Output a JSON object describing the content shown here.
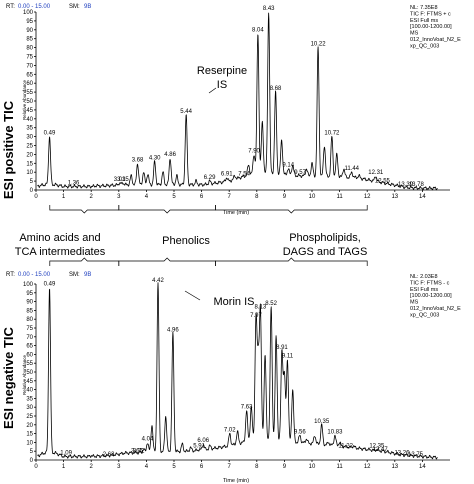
{
  "chart_data": [
    {
      "type": "line",
      "side_label": "ESI positive TIC",
      "header": {
        "rt_label": "RT:",
        "rt_value": "0.00 - 15.00",
        "sm_label": "SM:",
        "sm_value": "9B"
      },
      "meta_lines": [
        "NL: 7.35E8",
        "TIC F: FTMS + c",
        "ESI Full ms",
        "[100.00-1200.00]",
        "MS",
        "012_InnoVoat_N2_E",
        "xp_QC_003"
      ],
      "ylabel": "Relative Abundance",
      "xlabel": "Time (min)",
      "xlim": [
        0,
        15
      ],
      "ylim": [
        0,
        100
      ],
      "yticks": [
        0,
        5,
        10,
        15,
        20,
        25,
        30,
        35,
        40,
        45,
        50,
        55,
        60,
        65,
        70,
        75,
        80,
        85,
        90,
        95,
        100
      ],
      "xticks": [
        0,
        1,
        2,
        3,
        4,
        5,
        6,
        7,
        8,
        9,
        10,
        11,
        12,
        13,
        14
      ],
      "baseline": [
        [
          0,
          2
        ],
        [
          0.3,
          3
        ],
        [
          0.7,
          3
        ],
        [
          1,
          2
        ],
        [
          1.5,
          2
        ],
        [
          2,
          2
        ],
        [
          2.6,
          2.5
        ],
        [
          3.3,
          3
        ],
        [
          6.1,
          3
        ],
        [
          7,
          5
        ],
        [
          8,
          10
        ],
        [
          9.5,
          8
        ],
        [
          11.6,
          7
        ],
        [
          12.6,
          4
        ],
        [
          13.4,
          1.5
        ],
        [
          14,
          1
        ],
        [
          14.5,
          1
        ]
      ],
      "peaks": [
        {
          "label": "0.49",
          "x": 0.49,
          "y": 30
        },
        {
          "label": "1.36",
          "x": 1.36,
          "y": 2
        },
        {
          "label": "3.03",
          "x": 3.03,
          "y": 4
        },
        {
          "label": "3.15",
          "x": 3.15,
          "y": 4
        },
        {
          "label": "3.68",
          "x": 3.68,
          "y": 15
        },
        {
          "label": "4.30",
          "x": 4.3,
          "y": 16
        },
        {
          "label": "4.86",
          "x": 4.86,
          "y": 18
        },
        {
          "label": "5.44",
          "x": 5.44,
          "y": 42
        },
        {
          "label": "6.29",
          "x": 6.29,
          "y": 5
        },
        {
          "label": "6.91",
          "x": 6.91,
          "y": 7
        },
        {
          "label": "7.54",
          "x": 7.54,
          "y": 7
        },
        {
          "label": "7.90",
          "x": 7.9,
          "y": 20
        },
        {
          "label": "8.04",
          "x": 8.04,
          "y": 88
        },
        {
          "label": "8.43",
          "x": 8.43,
          "y": 100
        },
        {
          "label": "8.68",
          "x": 8.68,
          "y": 55
        },
        {
          "label": "9.14",
          "x": 9.14,
          "y": 12
        },
        {
          "label": "9.57",
          "x": 9.57,
          "y": 8
        },
        {
          "label": "10.22",
          "x": 10.22,
          "y": 80
        },
        {
          "label": "10.72",
          "x": 10.72,
          "y": 30
        },
        {
          "label": "11.44",
          "x": 11.44,
          "y": 10
        },
        {
          "label": "12.31",
          "x": 12.31,
          "y": 8
        },
        {
          "label": "12.55",
          "x": 12.55,
          "y": 3
        },
        {
          "label": "13.39",
          "x": 13.39,
          "y": 1
        },
        {
          "label": "13.78",
          "x": 13.78,
          "y": 1
        }
      ],
      "minor_peaks": [
        {
          "x": 2.2,
          "y": 2.5
        },
        {
          "x": 3.45,
          "y": 8
        },
        {
          "x": 3.9,
          "y": 10
        },
        {
          "x": 4.05,
          "y": 9
        },
        {
          "x": 4.6,
          "y": 10
        },
        {
          "x": 5.1,
          "y": 8
        },
        {
          "x": 5.8,
          "y": 5
        },
        {
          "x": 6.55,
          "y": 4
        },
        {
          "x": 7.2,
          "y": 8
        },
        {
          "x": 7.7,
          "y": 14
        },
        {
          "x": 8.2,
          "y": 38
        },
        {
          "x": 8.9,
          "y": 28
        },
        {
          "x": 9.3,
          "y": 14
        },
        {
          "x": 9.8,
          "y": 12
        },
        {
          "x": 10.0,
          "y": 15
        },
        {
          "x": 10.45,
          "y": 25
        },
        {
          "x": 10.9,
          "y": 20
        },
        {
          "x": 11.15,
          "y": 12
        },
        {
          "x": 11.7,
          "y": 8
        },
        {
          "x": 12.1,
          "y": 5
        }
      ],
      "annotations": [
        {
          "text": "Reserpine",
          "text2": "IS",
          "peak": "5.44"
        }
      ]
    },
    {
      "type": "line",
      "side_label": "ESI negative TIC",
      "header": {
        "rt_label": "RT:",
        "rt_value": "0.00 - 15.00",
        "sm_label": "SM:",
        "sm_value": "9B"
      },
      "meta_lines": [
        "NL: 2.03E8",
        "TIC F: FTMS - c",
        "ESI Full ms",
        "[100.00-1200.00]",
        "MS",
        "012_InnoVoat_N2_E",
        "xp_QC_003"
      ],
      "ylabel": "Relative Abundance",
      "xlabel": "Time (min)",
      "xlim": [
        0,
        15
      ],
      "ylim": [
        0,
        100
      ],
      "yticks": [
        0,
        5,
        10,
        15,
        20,
        25,
        30,
        35,
        40,
        45,
        50,
        55,
        60,
        65,
        70,
        75,
        80,
        85,
        90,
        95,
        100
      ],
      "xticks": [
        0,
        1,
        2,
        3,
        4,
        5,
        6,
        7,
        8,
        9,
        10,
        11,
        12,
        13,
        14
      ],
      "baseline": [
        [
          0,
          2
        ],
        [
          0.3,
          4
        ],
        [
          0.7,
          4
        ],
        [
          1,
          2
        ],
        [
          1.5,
          2
        ],
        [
          2,
          2
        ],
        [
          2.6,
          2.5
        ],
        [
          3.3,
          4
        ],
        [
          5.5,
          5
        ],
        [
          6.2,
          6
        ],
        [
          7,
          8
        ],
        [
          8,
          12
        ],
        [
          9.5,
          10
        ],
        [
          11,
          8
        ],
        [
          12,
          6
        ],
        [
          12.6,
          5
        ],
        [
          13.2,
          3
        ],
        [
          14,
          2
        ],
        [
          14.5,
          1.5
        ]
      ],
      "peaks": [
        {
          "label": "0.49",
          "x": 0.49,
          "y": 98
        },
        {
          "label": "1.09",
          "x": 1.09,
          "y": 2
        },
        {
          "label": "2.63",
          "x": 2.63,
          "y": 1
        },
        {
          "label": "3.66",
          "x": 3.66,
          "y": 3
        },
        {
          "label": "3.72",
          "x": 3.72,
          "y": 3
        },
        {
          "label": "4.04",
          "x": 4.04,
          "y": 10
        },
        {
          "label": "4.42",
          "x": 4.42,
          "y": 100
        },
        {
          "label": "4.96",
          "x": 4.96,
          "y": 72
        },
        {
          "label": "5.91",
          "x": 5.91,
          "y": 6
        },
        {
          "label": "6.06",
          "x": 6.06,
          "y": 9
        },
        {
          "label": "7.02",
          "x": 7.02,
          "y": 15
        },
        {
          "label": "7.63",
          "x": 7.63,
          "y": 28
        },
        {
          "label": "7.97",
          "x": 7.97,
          "y": 80
        },
        {
          "label": "8.13",
          "x": 8.13,
          "y": 85
        },
        {
          "label": "8.52",
          "x": 8.52,
          "y": 87
        },
        {
          "label": "8.91",
          "x": 8.91,
          "y": 62
        },
        {
          "label": "9.11",
          "x": 9.11,
          "y": 57
        },
        {
          "label": "9.56",
          "x": 9.56,
          "y": 14
        },
        {
          "label": "10.35",
          "x": 10.35,
          "y": 20
        },
        {
          "label": "10.83",
          "x": 10.83,
          "y": 14
        },
        {
          "label": "11.22",
          "x": 11.22,
          "y": 6
        },
        {
          "label": "12.35",
          "x": 12.35,
          "y": 6
        },
        {
          "label": "12.47",
          "x": 12.47,
          "y": 4
        },
        {
          "label": "13.26",
          "x": 13.26,
          "y": 2
        },
        {
          "label": "13.75",
          "x": 13.75,
          "y": 1
        }
      ],
      "minor_peaks": [
        {
          "x": 2.0,
          "y": 2.5
        },
        {
          "x": 3.2,
          "y": 4
        },
        {
          "x": 3.9,
          "y": 6
        },
        {
          "x": 4.2,
          "y": 20
        },
        {
          "x": 4.7,
          "y": 25
        },
        {
          "x": 5.3,
          "y": 9
        },
        {
          "x": 5.6,
          "y": 7
        },
        {
          "x": 6.3,
          "y": 8
        },
        {
          "x": 6.6,
          "y": 7
        },
        {
          "x": 7.3,
          "y": 16
        },
        {
          "x": 7.8,
          "y": 30
        },
        {
          "x": 8.05,
          "y": 55
        },
        {
          "x": 8.3,
          "y": 60
        },
        {
          "x": 8.7,
          "y": 70
        },
        {
          "x": 9.0,
          "y": 48
        },
        {
          "x": 9.3,
          "y": 40
        },
        {
          "x": 9.8,
          "y": 12
        },
        {
          "x": 10.1,
          "y": 14
        },
        {
          "x": 10.6,
          "y": 10
        },
        {
          "x": 11.0,
          "y": 10
        },
        {
          "x": 11.5,
          "y": 8
        }
      ],
      "annotations": [
        {
          "text": "Morin IS",
          "text2": "",
          "peak": "4.42"
        }
      ]
    }
  ],
  "groups": [
    {
      "line1": "Amino acids and",
      "line2": "TCA intermediates",
      "from": 0.5,
      "to": 3.0
    },
    {
      "line1": "Phenolics",
      "line2": "",
      "from": 3.0,
      "to": 6.5
    },
    {
      "line1": "Phospholipids,",
      "line2": "DAGS and TAGS",
      "from": 6.5,
      "to": 12.0
    }
  ]
}
